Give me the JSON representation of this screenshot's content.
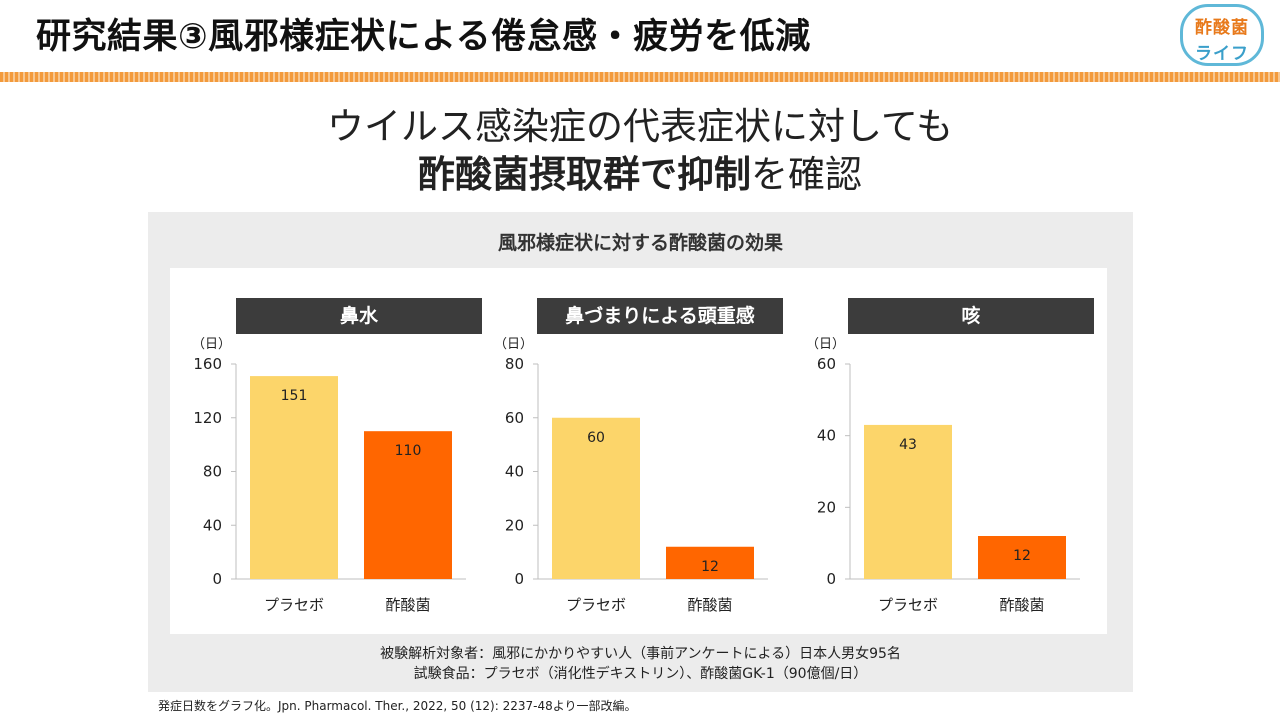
{
  "header": {
    "title": "研究結果③風邪様症状による倦怠感・疲労を低減",
    "logo_line1": "酢酸菌",
    "logo_line2": "ライフ"
  },
  "headline": {
    "line1": "ウイルス感染症の代表症状に対しても",
    "line2_bold": "酢酸菌摂取群で抑制",
    "line2_rest": "を確認"
  },
  "panel": {
    "title": "風邪様症状に対する酢酸菌の効果"
  },
  "chart_data": [
    {
      "type": "bar",
      "title": "鼻水",
      "ylabel": "（日）",
      "categories": [
        "プラセボ",
        "酢酸菌"
      ],
      "values": [
        151,
        110
      ],
      "ylim": [
        0,
        160
      ],
      "yticks": [
        0,
        40,
        80,
        120,
        160
      ],
      "colors": [
        "#fcd56a",
        "#ff6600"
      ],
      "grid": false
    },
    {
      "type": "bar",
      "title": "鼻づまりによる頭重感",
      "ylabel": "（日）",
      "categories": [
        "プラセボ",
        "酢酸菌"
      ],
      "values": [
        60,
        12
      ],
      "ylim": [
        0,
        80
      ],
      "yticks": [
        0,
        20,
        40,
        60,
        80
      ],
      "colors": [
        "#fcd56a",
        "#ff6600"
      ],
      "grid": false
    },
    {
      "type": "bar",
      "title": "咳",
      "ylabel": "（日）",
      "categories": [
        "プラセボ",
        "酢酸菌"
      ],
      "values": [
        43,
        12
      ],
      "ylim": [
        0,
        60
      ],
      "yticks": [
        0,
        20,
        40,
        60
      ],
      "colors": [
        "#fcd56a",
        "#ff6600"
      ],
      "grid": false
    }
  ],
  "footnote": {
    "line1": "被験解析対象者：風邪にかかりやすい人（事前アンケートによる）日本人男女95名",
    "line2": "試験食品：プラセボ（消化性デキストリン）、酢酸菌GK-1（90億個/日）"
  },
  "source": "発症日数をグラフ化。Jpn. Pharmacol. Ther., 2022, 50 (12): 2237-48より一部改編。"
}
